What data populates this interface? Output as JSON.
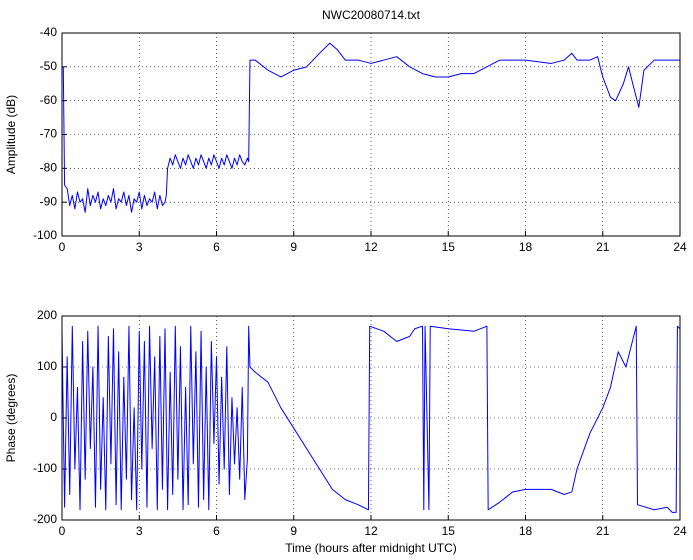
{
  "chart_data": [
    {
      "type": "line",
      "title": "NWC20080714.txt",
      "ylabel": "Amplitude (dB)",
      "x": [
        0,
        0.05,
        0.1,
        0.2,
        0.3,
        0.4,
        0.5,
        0.6,
        0.7,
        0.8,
        0.9,
        1.0,
        1.1,
        1.2,
        1.3,
        1.4,
        1.5,
        1.6,
        1.7,
        1.8,
        1.9,
        2.0,
        2.1,
        2.2,
        2.3,
        2.4,
        2.5,
        2.6,
        2.7,
        2.8,
        2.9,
        3.0,
        3.1,
        3.2,
        3.3,
        3.4,
        3.5,
        3.6,
        3.7,
        3.8,
        3.9,
        4.0,
        4.05,
        4.1,
        4.2,
        4.3,
        4.4,
        4.5,
        4.6,
        4.7,
        4.8,
        4.9,
        5.0,
        5.1,
        5.2,
        5.3,
        5.4,
        5.5,
        5.6,
        5.7,
        5.8,
        5.9,
        6.0,
        6.1,
        6.2,
        6.3,
        6.4,
        6.5,
        6.6,
        6.7,
        6.8,
        6.9,
        7.0,
        7.1,
        7.2,
        7.25,
        7.3,
        7.5,
        8,
        8.5,
        9,
        9.5,
        10,
        10.4,
        10.7,
        11,
        11.5,
        12,
        12.5,
        13,
        13.5,
        14,
        14.5,
        15,
        15.5,
        16,
        16.5,
        17,
        18,
        19,
        19.5,
        19.8,
        20,
        20.5,
        20.8,
        21,
        21.3,
        21.5,
        21.8,
        22,
        22.2,
        22.4,
        22.6,
        23,
        24
      ],
      "series": [
        {
          "color": "#0000ff",
          "values": [
            -50,
            -50,
            -85,
            -86,
            -91,
            -88,
            -92,
            -87,
            -90,
            -89,
            -93,
            -86,
            -91,
            -88,
            -90,
            -87,
            -92,
            -89,
            -91,
            -88,
            -90,
            -86,
            -92,
            -89,
            -90,
            -87,
            -91,
            -88,
            -93,
            -89,
            -90,
            -87,
            -92,
            -88,
            -91,
            -89,
            -90,
            -87,
            -92,
            -88,
            -91,
            -90,
            -88,
            -80,
            -77,
            -79,
            -76,
            -78,
            -80,
            -77,
            -79,
            -76,
            -78,
            -80,
            -77,
            -79,
            -76,
            -78,
            -80,
            -77,
            -79,
            -76,
            -78,
            -80,
            -77,
            -79,
            -76,
            -78,
            -80,
            -77,
            -79,
            -76,
            -78,
            -79,
            -77,
            -78,
            -48,
            -48,
            -51,
            -53,
            -51,
            -50,
            -46,
            -43,
            -45,
            -48,
            -48,
            -49,
            -48,
            -47,
            -50,
            -52,
            -53,
            -53,
            -52,
            -52,
            -50,
            -48,
            -48,
            -49,
            -48,
            -46,
            -48,
            -48,
            -47,
            -53,
            -59,
            -60,
            -55,
            -50,
            -56,
            -62,
            -51,
            -48,
            -48
          ]
        }
      ],
      "xlim": [
        0,
        24
      ],
      "xticks": [
        0,
        3,
        6,
        9,
        12,
        15,
        18,
        21,
        24
      ],
      "ylim": [
        -100,
        -40
      ],
      "yticks": [
        -100,
        -90,
        -80,
        -70,
        -60,
        -50,
        -40
      ],
      "grid": true
    },
    {
      "type": "line",
      "ylabel": "Phase (degrees)",
      "xlabel": "Time (hours after midnight UTC)",
      "x": [
        0,
        0.1,
        0.2,
        0.3,
        0.4,
        0.5,
        0.6,
        0.7,
        0.8,
        0.9,
        1.0,
        1.1,
        1.2,
        1.3,
        1.4,
        1.5,
        1.6,
        1.7,
        1.8,
        1.9,
        2.0,
        2.1,
        2.2,
        2.3,
        2.4,
        2.5,
        2.6,
        2.7,
        2.8,
        2.9,
        3.0,
        3.1,
        3.2,
        3.3,
        3.4,
        3.5,
        3.6,
        3.7,
        3.8,
        3.9,
        4.0,
        4.1,
        4.2,
        4.3,
        4.4,
        4.5,
        4.6,
        4.7,
        4.8,
        4.9,
        5.0,
        5.1,
        5.2,
        5.3,
        5.4,
        5.5,
        5.6,
        5.7,
        5.8,
        5.9,
        6.0,
        6.1,
        6.2,
        6.3,
        6.4,
        6.5,
        6.6,
        6.7,
        6.8,
        6.9,
        7.0,
        7.1,
        7.2,
        7.25,
        7.3,
        7.5,
        8,
        8.5,
        9,
        9.5,
        10,
        10.5,
        11,
        11.5,
        11.9,
        11.95,
        12.5,
        13,
        13.5,
        13.7,
        14,
        14.05,
        14.1,
        14.25,
        14.3,
        15,
        16,
        16.5,
        16.55,
        17,
        17.5,
        18,
        19,
        19.5,
        19.8,
        20,
        20.5,
        21,
        21.3,
        21.6,
        21.9,
        22.3,
        22.35,
        23,
        23.5,
        23.7,
        23.85,
        23.9,
        24
      ],
      "series": [
        {
          "color": "#0000ff",
          "values": [
            170,
            -175,
            120,
            -150,
            180,
            -100,
            60,
            -180,
            150,
            -120,
            170,
            -60,
            100,
            -175,
            180,
            -140,
            40,
            -180,
            160,
            -90,
            175,
            -170,
            130,
            -180,
            80,
            -120,
            180,
            -160,
            20,
            -180,
            170,
            -100,
            150,
            -175,
            180,
            -60,
            120,
            -180,
            160,
            -140,
            175,
            -180,
            90,
            -150,
            180,
            -120,
            140,
            -180,
            60,
            -170,
            180,
            -90,
            130,
            -175,
            170,
            -160,
            100,
            -180,
            150,
            -50,
            120,
            -130,
            80,
            -100,
            140,
            -150,
            40,
            -90,
            20,
            -120,
            60,
            -160,
            -80,
            180,
            100,
            90,
            70,
            20,
            -20,
            -60,
            -100,
            -140,
            -160,
            -170,
            -180,
            180,
            170,
            150,
            160,
            175,
            180,
            -180,
            180,
            -180,
            180,
            175,
            170,
            180,
            -180,
            -165,
            -145,
            -140,
            -140,
            -150,
            -145,
            -100,
            -30,
            20,
            60,
            130,
            100,
            180,
            -170,
            -180,
            -175,
            -185,
            -185,
            180,
            175
          ]
        }
      ],
      "xlim": [
        0,
        24
      ],
      "xticks": [
        0,
        3,
        6,
        9,
        12,
        15,
        18,
        21,
        24
      ],
      "ylim": [
        -200,
        200
      ],
      "yticks": [
        -200,
        -100,
        0,
        100,
        200
      ],
      "grid": true
    }
  ]
}
